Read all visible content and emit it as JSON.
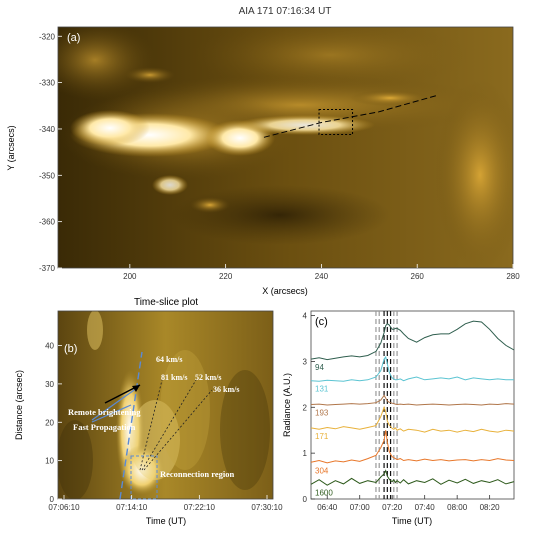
{
  "chart_data": [
    {
      "type": "heatmap",
      "title": "AIA 171 07:16:34 UT",
      "panel_label": "(a)",
      "xlabel": "X (arcsecs)",
      "ylabel": "Y (arcsecs)",
      "xlim": [
        185,
        280
      ],
      "ylim": [
        -370,
        -318
      ],
      "x_ticks": [
        "200",
        "220",
        "240",
        "260",
        "280"
      ],
      "y_ticks": [
        "-320",
        "-330",
        "-340",
        "-350",
        "-360",
        "-370"
      ],
      "slit_x": [
        228,
        240,
        252,
        264
      ],
      "slit_y": [
        -341.8,
        -338.6,
        -336.3,
        -332.8
      ],
      "box": {
        "x0": 239.5,
        "x1": 246.5,
        "y0": -341.2,
        "y1": -335.8
      },
      "colormap": "AIA 171 (gold)"
    },
    {
      "type": "heatmap",
      "title": "Time-slice plot",
      "panel_label": "(b)",
      "xlabel": "Time (UT)",
      "ylabel": "Distance (arcsec)",
      "x_ticks": [
        "07:06:10",
        "07:14:10",
        "07:22:10",
        "07:30:10"
      ],
      "y_ticks": [
        "0",
        "10",
        "20",
        "30",
        "40"
      ],
      "ylim": [
        0,
        49
      ],
      "speed_labels": [
        "64 km/s",
        "81 km/s",
        "52 km/s",
        "36 km/s"
      ],
      "annotations": [
        "Remote brightening",
        "Fast Propagation",
        "Reconnection region"
      ]
    },
    {
      "type": "line",
      "panel_label": "(c)",
      "xlabel": "Time (UT)",
      "ylabel": "Radiance (A.U.)",
      "x_ticks": [
        "06:40",
        "07:00",
        "07:20",
        "07:40",
        "08:00",
        "08:20"
      ],
      "xlim_minutes": [
        -30,
        95
      ],
      "ylim": [
        0,
        4.1
      ],
      "y_ticks": [
        "0",
        "1",
        "2",
        "3",
        "4"
      ],
      "x": [
        -30,
        -25,
        -20,
        -15,
        -10,
        -5,
        0,
        5,
        10,
        13,
        15,
        16,
        17,
        18,
        19,
        20,
        21,
        22,
        23,
        25,
        27,
        30,
        35,
        40,
        45,
        50,
        55,
        60,
        65,
        70,
        75,
        80,
        85,
        90,
        95
      ],
      "series": [
        {
          "name": "94",
          "color": "#2f5e4e",
          "values": [
            3.05,
            3.08,
            3.04,
            3.07,
            3.1,
            3.12,
            3.1,
            3.13,
            3.22,
            3.4,
            3.63,
            3.78,
            3.82,
            3.8,
            3.75,
            3.7,
            3.7,
            3.72,
            3.72,
            3.68,
            3.6,
            3.5,
            3.42,
            3.52,
            3.58,
            3.6,
            3.6,
            3.7,
            3.82,
            3.88,
            3.86,
            3.7,
            3.5,
            3.35,
            3.25
          ]
        },
        {
          "name": "131",
          "color": "#5bc4d2",
          "values": [
            2.58,
            2.57,
            2.59,
            2.58,
            2.57,
            2.6,
            2.58,
            2.6,
            2.66,
            2.8,
            3.05,
            3.1,
            2.95,
            2.78,
            2.7,
            2.64,
            2.62,
            2.6,
            2.6,
            2.62,
            2.58,
            2.62,
            2.66,
            2.6,
            2.62,
            2.64,
            2.62,
            2.66,
            2.6,
            2.64,
            2.62,
            2.6,
            2.62,
            2.6,
            2.6
          ]
        },
        {
          "name": "193",
          "color": "#b0764a",
          "values": [
            2.06,
            2.07,
            2.05,
            2.06,
            2.07,
            2.08,
            2.07,
            2.08,
            2.1,
            2.16,
            2.26,
            2.2,
            2.14,
            2.11,
            2.1,
            2.09,
            2.08,
            2.07,
            2.06,
            2.07,
            2.06,
            2.07,
            2.05,
            2.06,
            2.07,
            2.06,
            2.05,
            2.06,
            2.07,
            2.06,
            2.05,
            2.07,
            2.06,
            2.08,
            2.07
          ]
        },
        {
          "name": "171",
          "color": "#e8b13a",
          "values": [
            1.55,
            1.52,
            1.56,
            1.53,
            1.58,
            1.55,
            1.52,
            1.56,
            1.6,
            1.8,
            2.0,
            1.9,
            1.7,
            1.62,
            1.58,
            1.54,
            1.52,
            1.55,
            1.5,
            1.53,
            1.48,
            1.52,
            1.5,
            1.46,
            1.52,
            1.48,
            1.5,
            1.46,
            1.5,
            1.47,
            1.52,
            1.48,
            1.46,
            1.5,
            1.48
          ]
        },
        {
          "name": "304",
          "color": "#e8772a",
          "values": [
            0.8,
            0.84,
            0.79,
            0.83,
            0.81,
            0.85,
            0.82,
            0.88,
            0.95,
            1.12,
            1.28,
            1.5,
            1.25,
            1.05,
            0.98,
            0.92,
            0.9,
            0.88,
            0.86,
            0.88,
            0.84,
            0.86,
            0.83,
            0.87,
            0.84,
            0.86,
            0.83,
            0.85,
            0.86,
            0.83,
            0.86,
            0.84,
            0.88,
            0.85,
            0.84
          ]
        },
        {
          "name": "1600",
          "color": "#2e5a1c",
          "values": [
            0.32,
            0.42,
            0.3,
            0.4,
            0.33,
            0.45,
            0.34,
            0.4,
            0.36,
            0.48,
            0.55,
            0.62,
            0.5,
            0.44,
            0.4,
            0.38,
            0.42,
            0.36,
            0.4,
            0.35,
            0.42,
            0.33,
            0.4,
            0.36,
            0.44,
            0.32,
            0.41,
            0.35,
            0.43,
            0.34,
            0.4,
            0.36,
            0.42,
            0.33,
            0.38
          ]
        }
      ],
      "vlines_gray": [
        10,
        12,
        21,
        23
      ],
      "vlines_black": [
        15,
        17,
        19
      ]
    }
  ]
}
